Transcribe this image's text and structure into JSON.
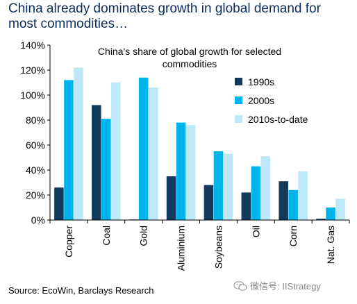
{
  "headline": "China already dominates growth in global demand for most commodities…",
  "source": "Source: EcoWin, Barclays Research",
  "watermark": {
    "text": "微信号: IIStrategy",
    "icon": "wechat-icon"
  },
  "colors": {
    "1990s": "#123a5c",
    "2000s": "#00b3ea",
    "2010s-to-date": "#bce8f7",
    "axis": "#000000"
  },
  "chart_data": {
    "type": "bar",
    "title": "China's share of global growth for selected commodities",
    "title_lines": [
      "China's share of global growth for selected",
      "commodities"
    ],
    "categories": [
      "Copper",
      "Coal",
      "Gold",
      "Aluminium",
      "Soybeans",
      "Oil",
      "Corn",
      "Nat. Gas"
    ],
    "series": [
      {
        "name": "1990s",
        "values": [
          26,
          92,
          0,
          35,
          28,
          22,
          31,
          1
        ]
      },
      {
        "name": "2000s",
        "values": [
          112,
          81,
          114,
          78,
          55,
          43,
          24,
          10
        ]
      },
      {
        "name": "2010s-to-date",
        "values": [
          122,
          110,
          106,
          76,
          53,
          51,
          39,
          17
        ]
      }
    ],
    "yticks": [
      "0%",
      "20%",
      "40%",
      "60%",
      "80%",
      "100%",
      "120%",
      "140%"
    ],
    "ylim": [
      0,
      140
    ],
    "xlabel": "",
    "ylabel": "",
    "grid": false,
    "legend_position": "right"
  }
}
